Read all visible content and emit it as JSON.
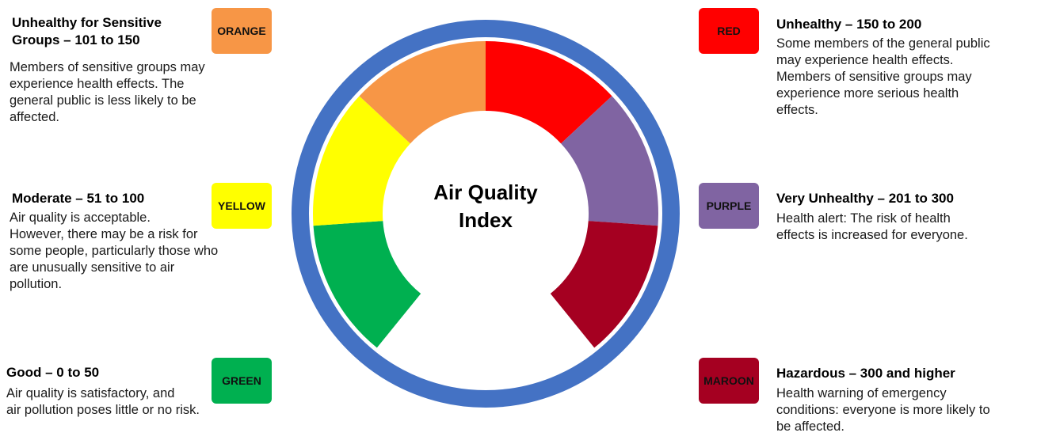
{
  "title": "Air Quality Index",
  "levels": [
    {
      "heading": [
        "Good – 0 to 50"
      ],
      "badge": "GREEN",
      "color": "#00b050",
      "description": [
        "Air quality is satisfactory, and",
        "air pollution poses little or no risk."
      ]
    },
    {
      "heading": [
        "Moderate – 51 to 100"
      ],
      "badge": "YELLOW",
      "color": "#ffff00",
      "description": [
        "Air quality is acceptable.",
        "However, there may be a risk for",
        "some people, particularly those who",
        "are unusually sensitive to air",
        "pollution."
      ]
    },
    {
      "heading": [
        "Unhealthy for Sensitive",
        "Groups – 101 to 150"
      ],
      "badge": "ORANGE",
      "color": "#f79646",
      "description": [
        "Members of sensitive groups may",
        "experience health effects. The",
        "general public is less likely to be",
        "affected."
      ]
    },
    {
      "heading": [
        "Unhealthy – 150 to 200"
      ],
      "badge": "RED",
      "color": "#ff0000",
      "description": [
        "Some members of the general public",
        "may experience health effects.",
        "Members of sensitive groups may",
        "experience more serious health",
        "effects."
      ]
    },
    {
      "heading": [
        "Very Unhealthy – 201 to 300"
      ],
      "badge": "PURPLE",
      "color": "#8064a2",
      "description": [
        "Health alert: The risk of health",
        "effects is increased for everyone."
      ]
    },
    {
      "heading": [
        "Hazardous – 300 and higher"
      ],
      "badge": "MAROON",
      "color": "#a50021",
      "description": [
        "Health warning of emergency",
        "conditions: everyone is more likely to",
        "be affected."
      ]
    }
  ]
}
